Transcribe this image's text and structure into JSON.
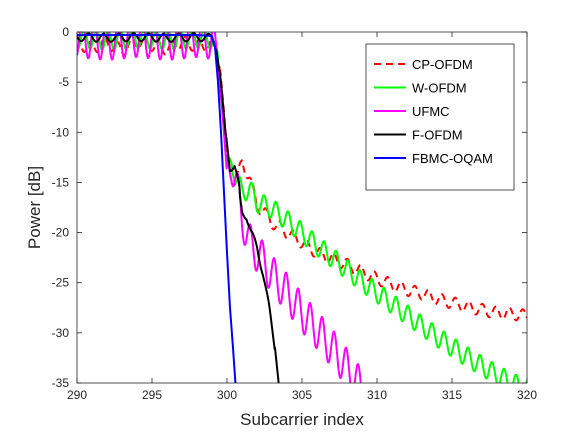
{
  "chart_data": {
    "type": "line",
    "title": "",
    "xlabel": "Subcarrier index",
    "ylabel": "Power [dB]",
    "xlim": [
      290,
      320
    ],
    "ylim": [
      -35,
      0
    ],
    "xticks": [
      290,
      295,
      300,
      305,
      310,
      315,
      320
    ],
    "yticks": [
      0,
      -5,
      -10,
      -15,
      -20,
      -25,
      -30,
      -35
    ],
    "grid": false,
    "legend_position": "top-right",
    "series": [
      {
        "name": "CP-OFDM",
        "color": "#ff0000",
        "style": "dashed",
        "ripple": {
          "period": 0.9,
          "amp": 0.6
        },
        "x": [
          290,
          291,
          292,
          293,
          294,
          295,
          296,
          297,
          298,
          299,
          299.5,
          299.8,
          300,
          300.3,
          300.6,
          301,
          301.5,
          302,
          302.5,
          303,
          304,
          305,
          306,
          307,
          308,
          309,
          310,
          311,
          312,
          313,
          314,
          315,
          316,
          317,
          318,
          319,
          320
        ],
        "y": [
          -1.2,
          -1.6,
          -1.1,
          -1.8,
          -1.0,
          -1.3,
          -1.7,
          -1.0,
          -1.4,
          -1.2,
          -3,
          -8,
          -12,
          -14.5,
          -15,
          -13,
          -14.5,
          -17.3,
          -18,
          -19,
          -20,
          -21,
          -22,
          -22.6,
          -23.2,
          -23.9,
          -24.6,
          -25.2,
          -25.7,
          -26.1,
          -26.6,
          -27,
          -27.4,
          -27.7,
          -28,
          -28.1,
          -28.3
        ]
      },
      {
        "name": "W-OFDM",
        "color": "#00ff00",
        "style": "solid",
        "ripple": {
          "period": 0.8,
          "amp": 1.0
        },
        "x": [
          290,
          292,
          294,
          296,
          298,
          299,
          299.4,
          299.7,
          300,
          300.3,
          300.6,
          301,
          301.5,
          302,
          303,
          304,
          305,
          306,
          307,
          308,
          309,
          310,
          311,
          312,
          313,
          314,
          315,
          316,
          317,
          318,
          319,
          320
        ],
        "y": [
          -0.6,
          -0.8,
          -0.6,
          -0.8,
          -0.6,
          -0.7,
          -3,
          -8,
          -14,
          -12.8,
          -14.5,
          -16,
          -15.6,
          -17,
          -17.6,
          -18.8,
          -20,
          -21.3,
          -22.5,
          -23.7,
          -24.9,
          -26,
          -27.1,
          -28.2,
          -29.3,
          -30.4,
          -31.4,
          -32.4,
          -33.3,
          -34.2,
          -35,
          -35.6
        ]
      },
      {
        "name": "UFMC",
        "color": "#ff00ff",
        "style": "solid",
        "ripple": {
          "period": 0.8,
          "amp": 1.9
        },
        "x": [
          290,
          292,
          294,
          296,
          298,
          299,
          299.4,
          299.7,
          300,
          300.3,
          300.6,
          301,
          301.5,
          302,
          302.5,
          303,
          304,
          305,
          306,
          307,
          308,
          308.5,
          309
        ],
        "y": [
          -0.6,
          -0.9,
          -0.6,
          -0.9,
          -0.6,
          -0.8,
          -3,
          -8,
          -14,
          -13,
          -15,
          -18.5,
          -21,
          -22,
          -23,
          -24.2,
          -26,
          -28,
          -29.7,
          -31.5,
          -33.5,
          -34.5,
          -35.6
        ]
      },
      {
        "name": "F-OFDM",
        "color": "#000000",
        "style": "solid",
        "ripple": {
          "period": 1.0,
          "amp": 0.4
        },
        "x": [
          290,
          292,
          294,
          296,
          298,
          299,
          299.3,
          299.6,
          299.9,
          300.2,
          300.5,
          300.8,
          301,
          301.3,
          301.6,
          302,
          302.4,
          302.8,
          303.2,
          303.5
        ],
        "y": [
          -0.5,
          -0.6,
          -0.5,
          -0.6,
          -0.5,
          -0.6,
          -1.5,
          -5,
          -10,
          -13.5,
          -13.3,
          -15.5,
          -18,
          -18.3,
          -20,
          -21.5,
          -24,
          -27.5,
          -31.5,
          -35.8
        ]
      },
      {
        "name": "FBMC-OQAM",
        "color": "#0000ff",
        "style": "solid",
        "ripple": {
          "period": 1.0,
          "amp": 0.0
        },
        "x": [
          290,
          292,
          294,
          296,
          298,
          299,
          299.2,
          299.4,
          299.6,
          299.8,
          300,
          300.2,
          300.4,
          300.6
        ],
        "y": [
          -0.3,
          -0.3,
          -0.3,
          -0.3,
          -0.3,
          -0.4,
          -1.5,
          -5,
          -10,
          -16,
          -22,
          -27.5,
          -31.5,
          -35.8
        ]
      }
    ]
  }
}
